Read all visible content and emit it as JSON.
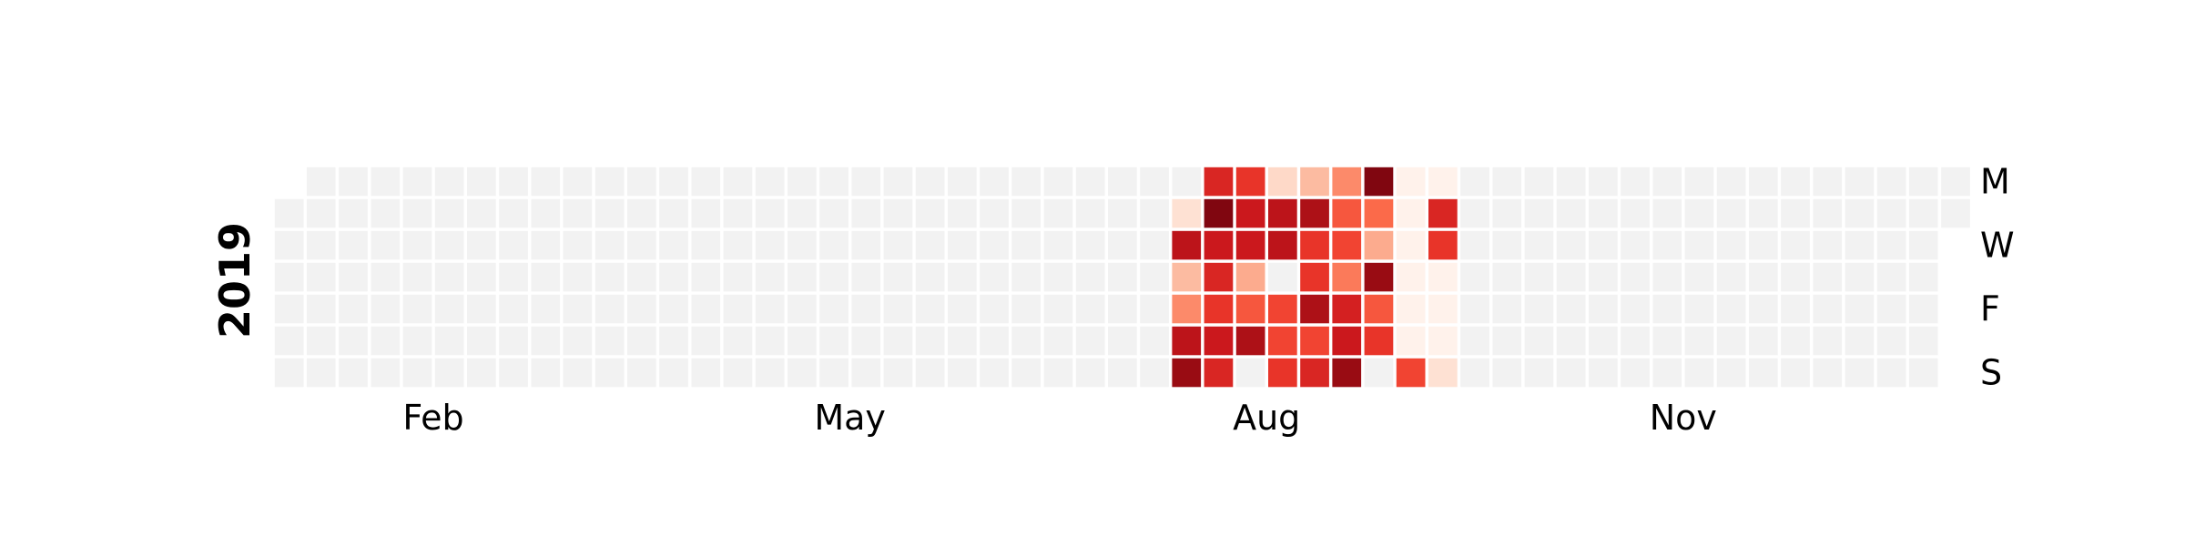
{
  "chart_data": {
    "type": "heatmap",
    "title": "",
    "year": "2019",
    "x_tick_labels": [
      "Feb",
      "May",
      "Aug",
      "Nov"
    ],
    "y_tick_labels": [
      "M",
      "W",
      "F",
      "S"
    ],
    "n_weeks": 53,
    "n_days": 7,
    "first_weekday_row": 1,
    "valid_days": 365,
    "colormap": "Reds",
    "empty_color": "#f2f2f2",
    "color_scale": [
      "#fff5f0",
      "#fee0d2",
      "#fcbba1",
      "#fc9272",
      "#fb6a4a",
      "#ef3b2c",
      "#cb181d",
      "#a50f15",
      "#67000d"
    ],
    "value_range": [
      0,
      1
    ],
    "active_period": {
      "first_week": 28,
      "last_week": 36
    },
    "values_by_week": [
      [
        0.0,
        0.12,
        0.8,
        0.25,
        0.4,
        0.8,
        0.9
      ],
      [
        0.7,
        0.95,
        0.75,
        0.7,
        0.65,
        0.75,
        0.7
      ],
      [
        0.65,
        0.75,
        0.75,
        0.3,
        0.55,
        0.85,
        0.0
      ],
      [
        0.15,
        0.8,
        0.8,
        0.0,
        0.6,
        0.6,
        0.65
      ],
      [
        0.25,
        0.85,
        0.65,
        0.65,
        0.85,
        0.6,
        0.7
      ],
      [
        0.4,
        0.55,
        0.6,
        0.45,
        0.72,
        0.75,
        0.9
      ],
      [
        0.95,
        0.5,
        0.3,
        0.9,
        0.55,
        0.65,
        0.0
      ],
      [
        0.02,
        0.02,
        0.0,
        0.0,
        0.0,
        0.0,
        0.6
      ],
      [
        0.0,
        0.7,
        0.65,
        0.0,
        0.0,
        0.0,
        0.12
      ]
    ],
    "low_values_by_week": [
      [
        0,
        0,
        0,
        0,
        0,
        0,
        0
      ],
      [
        0,
        0,
        0,
        0,
        0,
        0,
        0
      ],
      [
        0,
        0,
        0,
        0,
        0,
        0,
        0
      ],
      [
        0,
        0,
        0,
        0,
        0,
        0,
        0
      ],
      [
        0,
        0,
        0,
        0,
        0,
        0,
        0
      ],
      [
        0,
        0,
        0,
        0,
        0,
        0,
        0
      ],
      [
        0,
        0,
        0,
        0,
        0,
        0,
        0
      ],
      [
        0.02,
        0.02,
        0.02,
        0.02,
        0.02,
        0.02,
        0
      ],
      [
        0.02,
        0,
        0,
        0.02,
        0.02,
        0.02,
        0
      ]
    ]
  }
}
